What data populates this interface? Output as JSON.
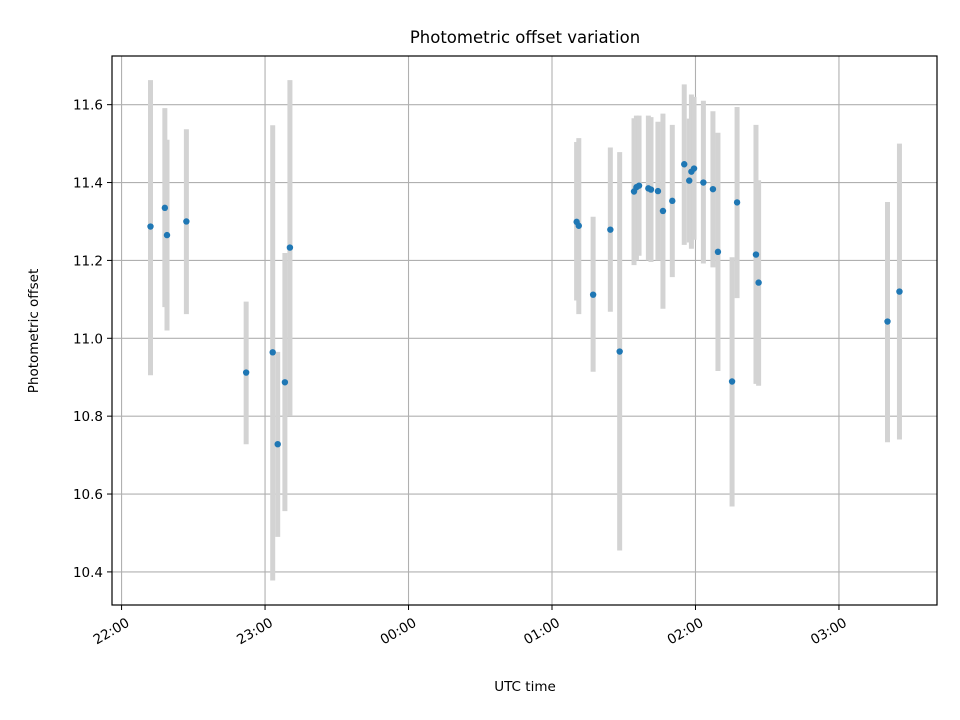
{
  "chart_data": {
    "type": "scatter",
    "title": "Photometric offset variation",
    "xlabel": "UTC time",
    "ylabel": "Photometric offset",
    "x_unit": "minutes relative to 22:00 UTC",
    "xlim": [
      -4,
      341
    ],
    "ylim": [
      10.315,
      11.725
    ],
    "grid": true,
    "marker_color": "#1f77b4",
    "errorbar_color": "#d3d3d3",
    "x_ticks": [
      {
        "value": 0,
        "label": "22:00"
      },
      {
        "value": 60,
        "label": "23:00"
      },
      {
        "value": 120,
        "label": "00:00"
      },
      {
        "value": 180,
        "label": "01:00"
      },
      {
        "value": 240,
        "label": "02:00"
      },
      {
        "value": 300,
        "label": "03:00"
      }
    ],
    "y_ticks": [
      {
        "value": 10.4,
        "label": "10.4"
      },
      {
        "value": 10.6,
        "label": "10.6"
      },
      {
        "value": 10.8,
        "label": "10.8"
      },
      {
        "value": 11.0,
        "label": "11.0"
      },
      {
        "value": 11.2,
        "label": "11.2"
      },
      {
        "value": 11.4,
        "label": "11.4"
      },
      {
        "value": 11.6,
        "label": "11.6"
      }
    ],
    "points": [
      {
        "x": 12.1,
        "y": 11.287,
        "lo": 10.905,
        "hi": 11.663
      },
      {
        "x": 18.1,
        "y": 11.335,
        "lo": 11.08,
        "hi": 11.591
      },
      {
        "x": 19.0,
        "y": 11.265,
        "lo": 11.02,
        "hi": 11.51
      },
      {
        "x": 27.1,
        "y": 11.3,
        "lo": 11.062,
        "hi": 11.537
      },
      {
        "x": 52.1,
        "y": 10.912,
        "lo": 10.728,
        "hi": 11.094
      },
      {
        "x": 63.2,
        "y": 10.964,
        "lo": 10.378,
        "hi": 11.547
      },
      {
        "x": 65.3,
        "y": 10.728,
        "lo": 10.49,
        "hi": 10.965
      },
      {
        "x": 68.3,
        "y": 10.887,
        "lo": 10.556,
        "hi": 11.219
      },
      {
        "x": 70.4,
        "y": 11.233,
        "lo": 10.802,
        "hi": 11.663
      },
      {
        "x": 190.3,
        "y": 11.299,
        "lo": 11.097,
        "hi": 11.504
      },
      {
        "x": 191.2,
        "y": 11.289,
        "lo": 11.062,
        "hi": 11.514
      },
      {
        "x": 197.2,
        "y": 11.112,
        "lo": 10.914,
        "hi": 11.312
      },
      {
        "x": 204.4,
        "y": 11.279,
        "lo": 11.068,
        "hi": 11.49
      },
      {
        "x": 208.3,
        "y": 10.966,
        "lo": 10.455,
        "hi": 11.478
      },
      {
        "x": 214.3,
        "y": 11.377,
        "lo": 11.188,
        "hi": 11.565
      },
      {
        "x": 215.3,
        "y": 11.388,
        "lo": 11.2,
        "hi": 11.572
      },
      {
        "x": 216.4,
        "y": 11.392,
        "lo": 11.212,
        "hi": 11.572
      },
      {
        "x": 220.3,
        "y": 11.385,
        "lo": 11.2,
        "hi": 11.572
      },
      {
        "x": 221.4,
        "y": 11.382,
        "lo": 11.196,
        "hi": 11.568
      },
      {
        "x": 224.3,
        "y": 11.378,
        "lo": 11.2,
        "hi": 11.556
      },
      {
        "x": 226.4,
        "y": 11.327,
        "lo": 11.076,
        "hi": 11.577
      },
      {
        "x": 230.3,
        "y": 11.353,
        "lo": 11.157,
        "hi": 11.548
      },
      {
        "x": 235.3,
        "y": 11.447,
        "lo": 11.24,
        "hi": 11.652
      },
      {
        "x": 237.4,
        "y": 11.405,
        "lo": 11.246,
        "hi": 11.564
      },
      {
        "x": 238.3,
        "y": 11.428,
        "lo": 11.23,
        "hi": 11.626
      },
      {
        "x": 239.4,
        "y": 11.436,
        "lo": 11.253,
        "hi": 11.62
      },
      {
        "x": 243.3,
        "y": 11.4,
        "lo": 11.192,
        "hi": 11.61
      },
      {
        "x": 247.3,
        "y": 11.383,
        "lo": 11.182,
        "hi": 11.583
      },
      {
        "x": 249.4,
        "y": 11.222,
        "lo": 10.916,
        "hi": 11.528
      },
      {
        "x": 255.3,
        "y": 10.889,
        "lo": 10.568,
        "hi": 11.208
      },
      {
        "x": 257.4,
        "y": 11.349,
        "lo": 11.103,
        "hi": 11.594
      },
      {
        "x": 265.3,
        "y": 11.215,
        "lo": 10.883,
        "hi": 11.548
      },
      {
        "x": 266.4,
        "y": 11.143,
        "lo": 10.878,
        "hi": 11.406
      },
      {
        "x": 320.3,
        "y": 11.043,
        "lo": 10.733,
        "hi": 11.35
      },
      {
        "x": 325.3,
        "y": 11.12,
        "lo": 10.74,
        "hi": 11.5
      }
    ]
  }
}
